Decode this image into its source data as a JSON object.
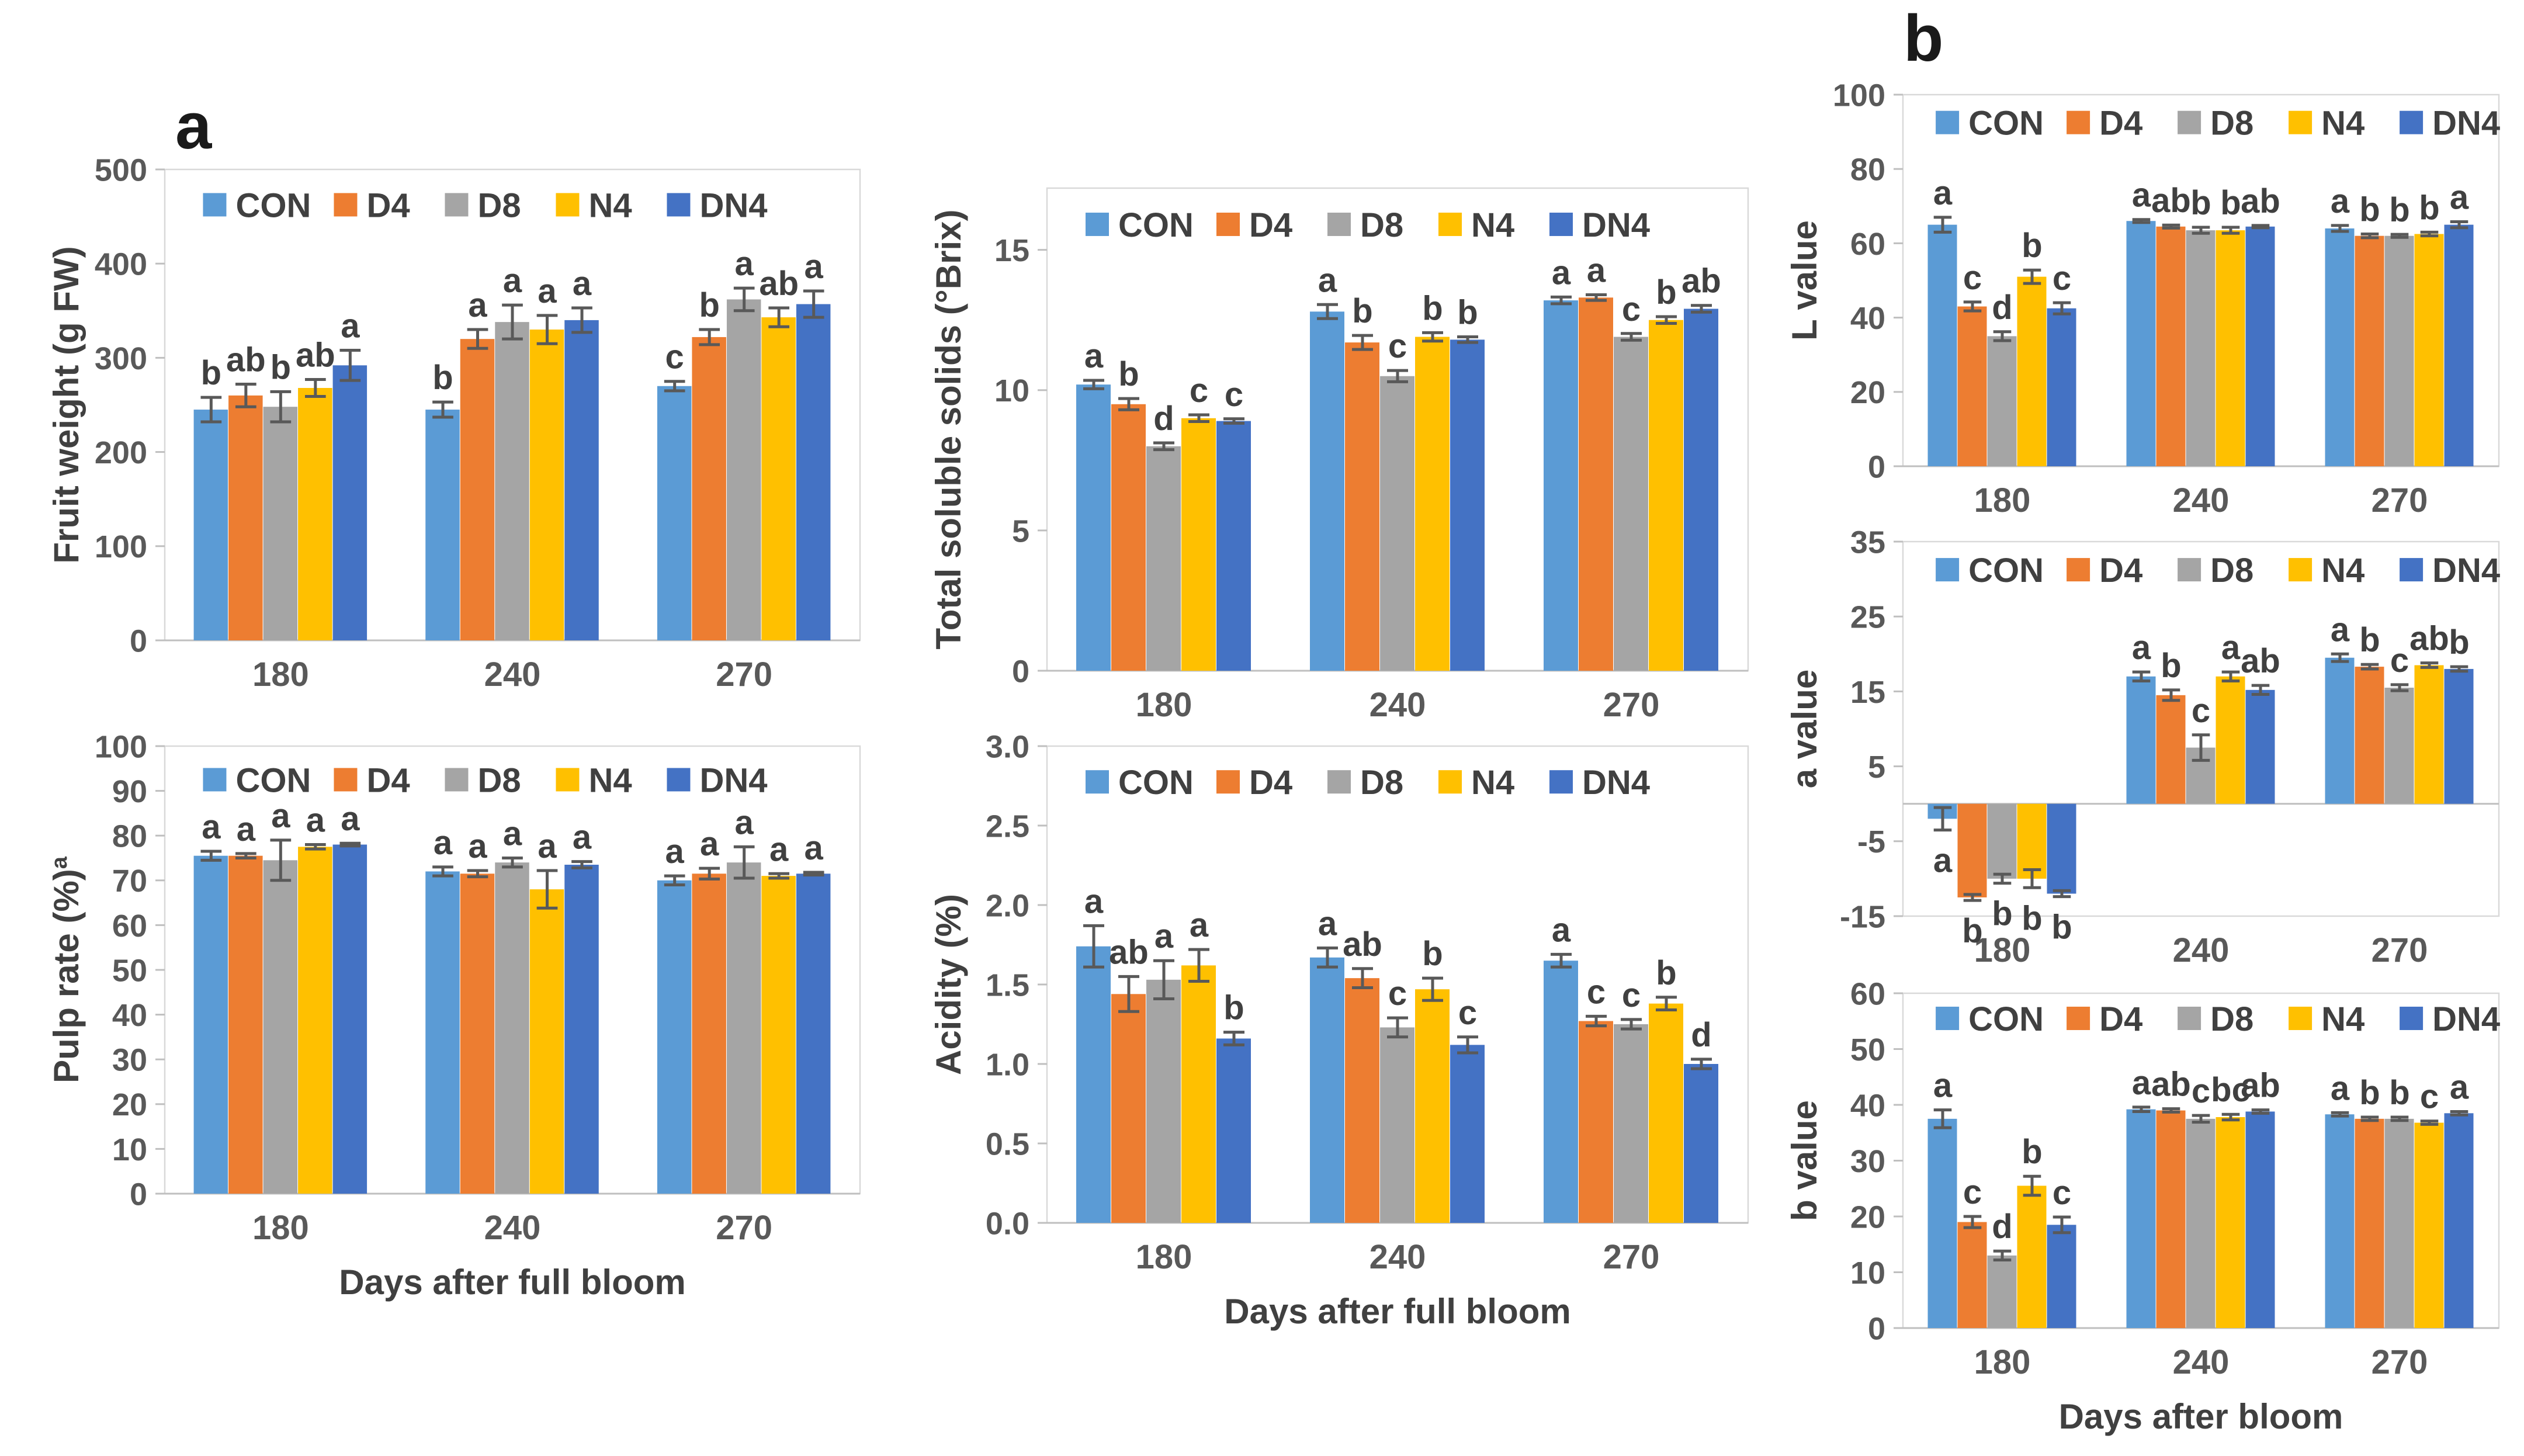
{
  "panel_a_label": "a",
  "panel_b_label": "b",
  "series": [
    {
      "name": "CON",
      "color": "#5B9BD5"
    },
    {
      "name": "D4",
      "color": "#ED7D31"
    },
    {
      "name": "D8",
      "color": "#A5A5A5"
    },
    {
      "name": "N4",
      "color": "#FFC000"
    },
    {
      "name": "DN4",
      "color": "#4472C4"
    }
  ],
  "categories": [
    "180",
    "240",
    "270"
  ],
  "chart_data": [
    {
      "id": "fruit-weight",
      "type": "bar",
      "panel": "a",
      "ylabel": "Fruit weight (g FW)",
      "xlabel": "",
      "categories": [
        "180",
        "240",
        "270"
      ],
      "ylim": [
        0,
        500
      ],
      "yticks": [
        0,
        100,
        200,
        300,
        400,
        500
      ],
      "ydecimals": 0,
      "legend_position": "top-inside",
      "grid": false,
      "series": [
        {
          "name": "CON",
          "values": [
            245,
            245,
            270
          ],
          "errors": [
            13,
            8,
            5
          ],
          "letters": [
            "b",
            "b",
            "c"
          ]
        },
        {
          "name": "D4",
          "values": [
            260,
            320,
            322
          ],
          "errors": [
            12,
            10,
            8
          ],
          "letters": [
            "ab",
            "a",
            "b"
          ]
        },
        {
          "name": "D8",
          "values": [
            248,
            338,
            362
          ],
          "errors": [
            16,
            18,
            12
          ],
          "letters": [
            "b",
            "a",
            "a"
          ]
        },
        {
          "name": "N4",
          "values": [
            268,
            330,
            343
          ],
          "errors": [
            9,
            15,
            10
          ],
          "letters": [
            "ab",
            "a",
            "ab"
          ]
        },
        {
          "name": "DN4",
          "values": [
            292,
            340,
            357
          ],
          "errors": [
            16,
            13,
            14
          ],
          "letters": [
            "a",
            "a",
            "a"
          ]
        }
      ]
    },
    {
      "id": "total-soluble-solids",
      "type": "bar",
      "panel": "a",
      "ylabel": "Total soluble solids (°Brix)",
      "xlabel": "",
      "categories": [
        "180",
        "240",
        "270"
      ],
      "ylim": [
        0,
        17.2
      ],
      "yticks": [
        0,
        5,
        10,
        15
      ],
      "ydecimals": 0,
      "legend_position": "top-inside",
      "grid": false,
      "series": [
        {
          "name": "CON",
          "values": [
            10.2,
            12.8,
            13.2
          ],
          "errors": [
            0.15,
            0.25,
            0.12
          ],
          "letters": [
            "a",
            "a",
            "a"
          ]
        },
        {
          "name": "D4",
          "values": [
            9.5,
            11.7,
            13.3
          ],
          "errors": [
            0.2,
            0.25,
            0.1
          ],
          "letters": [
            "b",
            "b",
            "a"
          ]
        },
        {
          "name": "D8",
          "values": [
            8.0,
            10.5,
            11.9
          ],
          "errors": [
            0.12,
            0.2,
            0.12
          ],
          "letters": [
            "d",
            "c",
            "c"
          ]
        },
        {
          "name": "N4",
          "values": [
            9.0,
            11.9,
            12.5
          ],
          "errors": [
            0.12,
            0.15,
            0.12
          ],
          "letters": [
            "c",
            "b",
            "b"
          ]
        },
        {
          "name": "DN4",
          "values": [
            8.9,
            11.8,
            12.9
          ],
          "errors": [
            0.08,
            0.1,
            0.12
          ],
          "letters": [
            "c",
            "b",
            "ab"
          ]
        }
      ]
    },
    {
      "id": "pulp-rate",
      "type": "bar",
      "panel": "a",
      "ylabel": "Pulp rate (%)",
      "ylabel_sup": "a",
      "xlabel": "Days after full bloom",
      "categories": [
        "180",
        "240",
        "270"
      ],
      "ylim": [
        0,
        100
      ],
      "yticks": [
        0,
        10,
        20,
        30,
        40,
        50,
        60,
        70,
        80,
        90,
        100
      ],
      "ydecimals": 0,
      "legend_position": "top-inside",
      "grid": false,
      "series": [
        {
          "name": "CON",
          "values": [
            75.5,
            72,
            70
          ],
          "errors": [
            1,
            1,
            1
          ],
          "letters": [
            "a",
            "a",
            "a"
          ]
        },
        {
          "name": "D4",
          "values": [
            75.5,
            71.5,
            71.5
          ],
          "errors": [
            0.5,
            0.7,
            1.2
          ],
          "letters": [
            "a",
            "a",
            "a"
          ]
        },
        {
          "name": "D8",
          "values": [
            74.5,
            74,
            74
          ],
          "errors": [
            4.5,
            1,
            3.5
          ],
          "letters": [
            "a",
            "a",
            "a"
          ]
        },
        {
          "name": "N4",
          "values": [
            77.5,
            68,
            71
          ],
          "errors": [
            0.5,
            4.2,
            0.5
          ],
          "letters": [
            "a",
            "a",
            "a"
          ]
        },
        {
          "name": "DN4",
          "values": [
            78,
            73.5,
            71.5
          ],
          "errors": [
            0.3,
            0.7,
            0.3
          ],
          "letters": [
            "a",
            "a",
            "a"
          ]
        }
      ]
    },
    {
      "id": "acidity",
      "type": "bar",
      "panel": "a",
      "ylabel": "Acidity (%)",
      "xlabel": "Days after full bloom",
      "categories": [
        "180",
        "240",
        "270"
      ],
      "ylim": [
        0,
        3.0
      ],
      "yticks": [
        0.0,
        0.5,
        1.0,
        1.5,
        2.0,
        2.5,
        3.0
      ],
      "ydecimals": 1,
      "legend_position": "top-inside",
      "grid": false,
      "series": [
        {
          "name": "CON",
          "values": [
            1.74,
            1.67,
            1.65
          ],
          "errors": [
            0.13,
            0.06,
            0.04
          ],
          "letters": [
            "a",
            "a",
            "a"
          ]
        },
        {
          "name": "D4",
          "values": [
            1.44,
            1.54,
            1.27
          ],
          "errors": [
            0.11,
            0.06,
            0.03
          ],
          "letters": [
            "ab",
            "ab",
            "c"
          ]
        },
        {
          "name": "D8",
          "values": [
            1.53,
            1.23,
            1.25
          ],
          "errors": [
            0.12,
            0.06,
            0.03
          ],
          "letters": [
            "a",
            "c",
            "c"
          ]
        },
        {
          "name": "N4",
          "values": [
            1.62,
            1.47,
            1.38
          ],
          "errors": [
            0.1,
            0.07,
            0.04
          ],
          "letters": [
            "a",
            "b",
            "b"
          ]
        },
        {
          "name": "DN4",
          "values": [
            1.16,
            1.12,
            1.0
          ],
          "errors": [
            0.04,
            0.05,
            0.03
          ],
          "letters": [
            "b",
            "c",
            "d"
          ]
        }
      ]
    },
    {
      "id": "l-value",
      "type": "bar",
      "panel": "b",
      "ylabel": "L value",
      "xlabel": "",
      "categories": [
        "180",
        "240",
        "270"
      ],
      "ylim": [
        0,
        100
      ],
      "yticks": [
        0,
        20,
        40,
        60,
        80,
        100
      ],
      "ydecimals": 0,
      "legend_position": "top-inside",
      "grid": false,
      "series": [
        {
          "name": "CON",
          "values": [
            65,
            66,
            64
          ],
          "errors": [
            2,
            0.4,
            0.8
          ],
          "letters": [
            "a",
            "a",
            "a"
          ]
        },
        {
          "name": "D4",
          "values": [
            43,
            64.5,
            62
          ],
          "errors": [
            1.2,
            0.4,
            0.5
          ],
          "letters": [
            "c",
            "ab",
            "b"
          ]
        },
        {
          "name": "D8",
          "values": [
            35,
            63.5,
            62
          ],
          "errors": [
            1.2,
            0.8,
            0.4
          ],
          "letters": [
            "d",
            "b",
            "b"
          ]
        },
        {
          "name": "N4",
          "values": [
            51,
            63.5,
            62.5
          ],
          "errors": [
            1.8,
            0.8,
            0.5
          ],
          "letters": [
            "b",
            "b",
            "b"
          ]
        },
        {
          "name": "DN4",
          "values": [
            42.5,
            64.5,
            65
          ],
          "errors": [
            1.5,
            0.3,
            0.8
          ],
          "letters": [
            "c",
            "ab",
            "a"
          ]
        }
      ]
    },
    {
      "id": "a-value",
      "type": "bar",
      "panel": "b",
      "ylabel": "a value",
      "xlabel": "",
      "categories": [
        "180",
        "240",
        "270"
      ],
      "ylim": [
        -15,
        35
      ],
      "yticks": [
        -15,
        -5,
        5,
        15,
        25,
        35
      ],
      "ydecimals": 0,
      "legend_position": "top-inside",
      "grid": false,
      "series": [
        {
          "name": "CON",
          "values": [
            -2,
            17,
            19.5
          ],
          "errors": [
            1.5,
            0.6,
            0.5
          ],
          "letters": [
            "a",
            "a",
            "a"
          ]
        },
        {
          "name": "D4",
          "values": [
            -12.5,
            14.5,
            18.3
          ],
          "errors": [
            0.4,
            0.7,
            0.3
          ],
          "letters": [
            "b",
            "b",
            "b"
          ]
        },
        {
          "name": "D8",
          "values": [
            -10,
            7.5,
            15.5
          ],
          "errors": [
            0.6,
            1.7,
            0.4
          ],
          "letters": [
            "b",
            "c",
            "c"
          ]
        },
        {
          "name": "N4",
          "values": [
            -10,
            17,
            18.5
          ],
          "errors": [
            1.2,
            0.6,
            0.3
          ],
          "letters": [
            "b",
            "a",
            "ab"
          ]
        },
        {
          "name": "DN4",
          "values": [
            -12,
            15.2,
            18
          ],
          "errors": [
            0.4,
            0.6,
            0.3
          ],
          "letters": [
            "b",
            "ab",
            "b"
          ]
        }
      ]
    },
    {
      "id": "b-value",
      "type": "bar",
      "panel": "b",
      "ylabel": "b value",
      "xlabel": "Days after bloom",
      "categories": [
        "180",
        "240",
        "270"
      ],
      "ylim": [
        0,
        60
      ],
      "yticks": [
        0,
        10,
        20,
        30,
        40,
        50,
        60
      ],
      "ydecimals": 0,
      "legend_position": "top-inside",
      "grid": false,
      "series": [
        {
          "name": "CON",
          "values": [
            37.5,
            39.2,
            38.3
          ],
          "errors": [
            1.6,
            0.4,
            0.3
          ],
          "letters": [
            "a",
            "a",
            "a"
          ]
        },
        {
          "name": "D4",
          "values": [
            19,
            39,
            37.5
          ],
          "errors": [
            1.0,
            0.3,
            0.3
          ],
          "letters": [
            "c",
            "ab",
            "b"
          ]
        },
        {
          "name": "D8",
          "values": [
            13,
            37.5,
            37.5
          ],
          "errors": [
            0.8,
            0.6,
            0.3
          ],
          "letters": [
            "d",
            "c",
            "b"
          ]
        },
        {
          "name": "N4",
          "values": [
            25.5,
            37.8,
            36.8
          ],
          "errors": [
            1.7,
            0.5,
            0.3
          ],
          "letters": [
            "b",
            "bc",
            "c"
          ]
        },
        {
          "name": "DN4",
          "values": [
            18.5,
            38.8,
            38.5
          ],
          "errors": [
            1.4,
            0.3,
            0.3
          ],
          "letters": [
            "c",
            "ab",
            "a"
          ]
        }
      ]
    }
  ]
}
